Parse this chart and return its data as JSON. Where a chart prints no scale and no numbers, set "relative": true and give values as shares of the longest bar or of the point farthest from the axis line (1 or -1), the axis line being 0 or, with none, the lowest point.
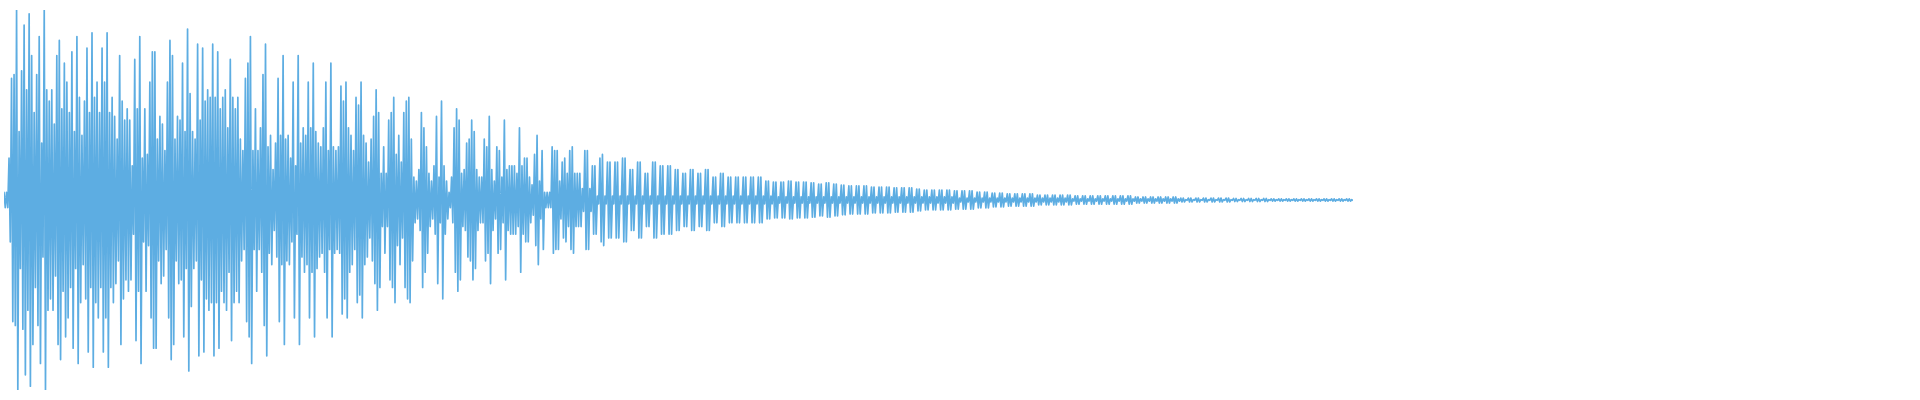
{
  "chart_data": {
    "type": "line",
    "relative": true,
    "color": "#5dade2",
    "marker": "none",
    "line_style": "solid",
    "categories": [
      null,
      null,
      null,
      null,
      null,
      null,
      null,
      null,
      null,
      null,
      null,
      null,
      null,
      null,
      null,
      null,
      null,
      null,
      null,
      null,
      null,
      null,
      null,
      null,
      null,
      null,
      null,
      null,
      null,
      null,
      null,
      null,
      null,
      null,
      null,
      null,
      null,
      null,
      null,
      null,
      null,
      null,
      null,
      null,
      null,
      null,
      null,
      null,
      null,
      null,
      null,
      null,
      null,
      null,
      null,
      null,
      null,
      null,
      null,
      null,
      null,
      null,
      null,
      null,
      null,
      null,
      null,
      null,
      null,
      null,
      null,
      null,
      null,
      null,
      null,
      null,
      null,
      null,
      null,
      null,
      null,
      null,
      null,
      null,
      null,
      null,
      null,
      null,
      null,
      null,
      null,
      null,
      null,
      null,
      null,
      null,
      null,
      null,
      null,
      null,
      null,
      null,
      null,
      null,
      null,
      null,
      null,
      null,
      null,
      null,
      null,
      null,
      null,
      null,
      null,
      null,
      null,
      null,
      null,
      null,
      null,
      null,
      null,
      null,
      null,
      null,
      null,
      null,
      null,
      null,
      null,
      null,
      null,
      null,
      null,
      null,
      null,
      null,
      null,
      null,
      null,
      null,
      null,
      null,
      null,
      null,
      null,
      null,
      null,
      null,
      null,
      null,
      null,
      null,
      null,
      null,
      null,
      null,
      null,
      null,
      null,
      null,
      null,
      null,
      null,
      null,
      null,
      null,
      null,
      null,
      null,
      null,
      null,
      null,
      null,
      null,
      null,
      null,
      null,
      null,
      null,
      null,
      null,
      null,
      null,
      null,
      null,
      null,
      null,
      null,
      null,
      null,
      null,
      null,
      null,
      null,
      null,
      null,
      null,
      null,
      null,
      null,
      null,
      null,
      null,
      null,
      null,
      null,
      null,
      null,
      null,
      null,
      null,
      null,
      null,
      null,
      null,
      null,
      null,
      null,
      null,
      null,
      null,
      null,
      null,
      null,
      null,
      null,
      null,
      null,
      null,
      null,
      null,
      null,
      null,
      null,
      null,
      null,
      null,
      null,
      null,
      null,
      null,
      null,
      null,
      null,
      null,
      null,
      null,
      null,
      null,
      null,
      null,
      null,
      null,
      null,
      null,
      null,
      null,
      null,
      null,
      null,
      null,
      null,
      null,
      null,
      null,
      null,
      null,
      null,
      null,
      null,
      null,
      null,
      null,
      null,
      null,
      null,
      null,
      null,
      null,
      null,
      null,
      null,
      null,
      null,
      null,
      null,
      null,
      null,
      null,
      null,
      null,
      null,
      null,
      null,
      null,
      null,
      null,
      null,
      null,
      null,
      null,
      null,
      null,
      null,
      null,
      null,
      null,
      null,
      null,
      null,
      null,
      null,
      null,
      null,
      null,
      null,
      null,
      null,
      null,
      null,
      null,
      null,
      null,
      null,
      null,
      null,
      null,
      null,
      null,
      null,
      null,
      null,
      null,
      null,
      null,
      null,
      null,
      null,
      null,
      null,
      null,
      null,
      null,
      null,
      null,
      null,
      null,
      null,
      null,
      null,
      null,
      null,
      null,
      null,
      null,
      null,
      null,
      null,
      null,
      null,
      null,
      null,
      null,
      null,
      null,
      null,
      null,
      null,
      null,
      null,
      null,
      null,
      null,
      null,
      null,
      null,
      null,
      null,
      null,
      null,
      null,
      null,
      null,
      null,
      null,
      null,
      null,
      null,
      null,
      null,
      null,
      null,
      null,
      null,
      null,
      null,
      null,
      null,
      null,
      null,
      null,
      null,
      null,
      null,
      null,
      null,
      null,
      null,
      null,
      null,
      null,
      null,
      null,
      null,
      null,
      null,
      null,
      null,
      null,
      null,
      null,
      null,
      null,
      null,
      null,
      null,
      null,
      null,
      null,
      null,
      null,
      null,
      null,
      null,
      null,
      null,
      null,
      null,
      null,
      null,
      null,
      null,
      null,
      null,
      null,
      null,
      null,
      null,
      null,
      null,
      null,
      null,
      null,
      null,
      null,
      null,
      null,
      null,
      null,
      null,
      null,
      null,
      null,
      null,
      null,
      null,
      null,
      null,
      null,
      null,
      null,
      null,
      null,
      null,
      null,
      null,
      null,
      null,
      null,
      null,
      null,
      null,
      null,
      null,
      null,
      null,
      null,
      null,
      null,
      null,
      null,
      null,
      null,
      null,
      null,
      null,
      null,
      null,
      null,
      null,
      null,
      null,
      null,
      null,
      null,
      null,
      null,
      null,
      null,
      null,
      null,
      null,
      null,
      null,
      null,
      null,
      null,
      null,
      null,
      null,
      null,
      null,
      null,
      null,
      null,
      null,
      null,
      null,
      null,
      null,
      null,
      null,
      null,
      null,
      null,
      null,
      null,
      null,
      null,
      null,
      null,
      null,
      null,
      null,
      null,
      null,
      null,
      null,
      null,
      null,
      null,
      null,
      null,
      null,
      null,
      null,
      null,
      null,
      null,
      null,
      null,
      null,
      null,
      null,
      null,
      null,
      null,
      null,
      null,
      null,
      null,
      null,
      null,
      null,
      null,
      null,
      null,
      null,
      null,
      null,
      null,
      null,
      null,
      null,
      null,
      null,
      null,
      null,
      null,
      null,
      null,
      null,
      null,
      null,
      null,
      null,
      null,
      null,
      null,
      null,
      null,
      null,
      null,
      null,
      null,
      null,
      null,
      null,
      null,
      null,
      null,
      null,
      null,
      null,
      null,
      null,
      null,
      null,
      null,
      null,
      null,
      null,
      null,
      null,
      null,
      null,
      null,
      null,
      null,
      null,
      null,
      null,
      null,
      null,
      null,
      null,
      null,
      null,
      null,
      null,
      null,
      null,
      null,
      null,
      null,
      null,
      null,
      null,
      null,
      null,
      null,
      null,
      null,
      null,
      null,
      null,
      null,
      null,
      null,
      null,
      null,
      null,
      null,
      null,
      null,
      null,
      null,
      null,
      null,
      null,
      null,
      null,
      null,
      null,
      null,
      null,
      null,
      null,
      null,
      null,
      null,
      null,
      null,
      null,
      null,
      null,
      null,
      null,
      null,
      null,
      null,
      null,
      null,
      null,
      null,
      null,
      null,
      null,
      null,
      null,
      null,
      null,
      null,
      null,
      null,
      null,
      null,
      null,
      null,
      null,
      null,
      null,
      null,
      null,
      null,
      null,
      null,
      null,
      null,
      null,
      null,
      null,
      null,
      null,
      null,
      null,
      null,
      null,
      null,
      null,
      null,
      null,
      null,
      null,
      null,
      null,
      null,
      null,
      null,
      null,
      null,
      null,
      null,
      null,
      null,
      null,
      null,
      null,
      null,
      null,
      null,
      null,
      null,
      null,
      null,
      null,
      null,
      null,
      null,
      null,
      null,
      null,
      null,
      null,
      null,
      null,
      null,
      null,
      null,
      null,
      null,
      null,
      null,
      null,
      null,
      null,
      null,
      null,
      null,
      null,
      null,
      null,
      null,
      null,
      null,
      null,
      null,
      null,
      null,
      null,
      null,
      null,
      null,
      null,
      null,
      null,
      null,
      null,
      null,
      null,
      null,
      null,
      null,
      null,
      null,
      null,
      null,
      null,
      null,
      null,
      null,
      null,
      null,
      null,
      null,
      null,
      null,
      null,
      null,
      null,
      null,
      null,
      null,
      null,
      null,
      null,
      null,
      null,
      null,
      null,
      null,
      null,
      null,
      null,
      null,
      null,
      null,
      null,
      null,
      null,
      null,
      null,
      null,
      null,
      null,
      null,
      null,
      null,
      null,
      null,
      null,
      null,
      null,
      null,
      null,
      null,
      null,
      null,
      null,
      null,
      null,
      null,
      null,
      null,
      null,
      null,
      null,
      null,
      null,
      null,
      null,
      null,
      null,
      null,
      null,
      null,
      null,
      null,
      null,
      null,
      null,
      null,
      null,
      null,
      null,
      null,
      null,
      null,
      null,
      null,
      null,
      null,
      null,
      null,
      null,
      null,
      null,
      null,
      null,
      null,
      null,
      null,
      null,
      null,
      null,
      null,
      null,
      null,
      null,
      null,
      null,
      null,
      null,
      null,
      null,
      null,
      null,
      null,
      null,
      null,
      null,
      null,
      null,
      null,
      null,
      null,
      null,
      null,
      null,
      null,
      null,
      null,
      null,
      null,
      null,
      null,
      null,
      null,
      null,
      null,
      null,
      null,
      null,
      null,
      null,
      null,
      null,
      null,
      null,
      null,
      null,
      null,
      null,
      null,
      null,
      null,
      null,
      null,
      null,
      null,
      null,
      null,
      null,
      null,
      null,
      null,
      null,
      null,
      null,
      null,
      null,
      null,
      null,
      null,
      null,
      null,
      null,
      null,
      null,
      null,
      null,
      null,
      null,
      null,
      null,
      null,
      null,
      null,
      null,
      null,
      null,
      null,
      null,
      null,
      null,
      null,
      null,
      null,
      null,
      null,
      null,
      null,
      null,
      null,
      null,
      null,
      null,
      null,
      null,
      null,
      null,
      null,
      null,
      null,
      null,
      null,
      null,
      null,
      null,
      null,
      null,
      null,
      null,
      null,
      null,
      null,
      null,
      null,
      null,
      null,
      null,
      null,
      null,
      null,
      null,
      null,
      null,
      null,
      null,
      null,
      null,
      null,
      null,
      null,
      null,
      null,
      null,
      null,
      null,
      null,
      null,
      null,
      null,
      null,
      null,
      null,
      null,
      null,
      null,
      null,
      null,
      null,
      null,
      null,
      null,
      null,
      null,
      null,
      null,
      null,
      null,
      null
    ],
    "values": [
      0.52,
      0.48,
      0.52,
      0.48,
      0.61,
      0.39,
      0.82,
      0.18,
      0.83,
      0.17,
      1,
      0,
      0.68,
      0.32,
      0.84,
      0.16,
      0.96,
      0.04,
      0.79,
      0.21,
      0.99,
      0.01,
      0.88,
      0.12,
      0.73,
      0.27,
      0.83,
      0.17,
      0.93,
      0.07,
      0.65,
      0.35,
      1,
      0,
      0.79,
      0.21,
      0.76,
      0.24,
      0.79,
      0.21,
      0.7,
      0.3,
      0.88,
      0.12,
      0.92,
      0.08,
      0.74,
      0.26,
      0.86,
      0.14,
      0.81,
      0.19,
      0.73,
      0.27,
      0.89,
      0.11,
      0.68,
      0.32,
      0.93,
      0.07,
      0.77,
      0.23,
      0.67,
      0.33,
      0.76,
      0.24,
      0.9,
      0.1,
      0.73,
      0.27,
      0.94,
      0.06,
      0.77,
      0.23,
      0.81,
      0.19,
      0.73,
      0.27,
      0.9,
      0.1,
      0.81,
      0.19,
      0.94,
      0.06,
      0.73,
      0.27,
      0.77,
      0.23,
      0.72,
      0.28,
      0.66,
      0.34,
      0.88,
      0.12,
      0.76,
      0.24,
      0.71,
      0.29,
      0.74,
      0.26,
      0.71,
      0.29,
      0.59,
      0.41,
      0.87,
      0.13,
      0.74,
      0.26,
      0.93,
      0.07,
      0.61,
      0.39,
      0.74,
      0.26,
      0.62,
      0.38,
      0.81,
      0.19,
      0.89,
      0.11,
      0.89,
      0.11,
      0.66,
      0.34,
      0.72,
      0.28,
      0.7,
      0.3,
      0.63,
      0.37,
      0.81,
      0.19,
      0.92,
      0.08,
      0.88,
      0.12,
      0.66,
      0.34,
      0.72,
      0.28,
      0.71,
      0.29,
      0.86,
      0.14,
      0.68,
      0.32,
      0.95,
      0.05,
      0.78,
      0.22,
      0.68,
      0.32,
      0.66,
      0.34,
      0.91,
      0.09,
      0.71,
      0.29,
      0.9,
      0.1,
      0.76,
      0.24,
      0.79,
      0.21,
      0.77,
      0.23,
      0.91,
      0.09,
      0.77,
      0.23,
      0.89,
      0.11,
      0.74,
      0.26,
      0.77,
      0.23,
      0.79,
      0.21,
      0.69,
      0.31,
      0.87,
      0.13,
      0.77,
      0.23,
      0.74,
      0.26,
      0.77,
      0.23,
      0.66,
      0.34,
      0.63,
      0.37,
      0.82,
      0.18,
      0.86,
      0.14,
      0.93,
      0.07,
      0.63,
      0.37,
      0.74,
      0.26,
      0.63,
      0.37,
      0.69,
      0.31,
      0.83,
      0.17,
      0.91,
      0.09,
      0.64,
      0.36,
      0.67,
      0.33,
      0.58,
      0.42,
      0.65,
      0.35,
      0.82,
      0.18,
      0.67,
      0.33,
      0.88,
      0.12,
      0.66,
      0.34,
      0.67,
      0.33,
      0.61,
      0.39,
      0.81,
      0.19,
      0.59,
      0.41,
      0.88,
      0.12,
      0.65,
      0.35,
      0.69,
      0.31,
      0.67,
      0.33,
      0.81,
      0.19,
      0.69,
      0.31,
      0.86,
      0.14,
      0.68,
      0.32,
      0.65,
      0.35,
      0.64,
      0.36,
      0.69,
      0.31,
      0.81,
      0.19,
      0.63,
      0.37,
      0.86,
      0.14,
      0.64,
      0.36,
      0.63,
      0.37,
      0.64,
      0.36,
      0.8,
      0.2,
      0.76,
      0.24,
      0.81,
      0.19,
      0.69,
      0.31,
      0.67,
      0.33,
      0.63,
      0.37,
      0.77,
      0.23,
      0.75,
      0.25,
      0.81,
      0.19,
      0.67,
      0.33,
      0.65,
      0.35,
      0.6,
      0.4,
      0.66,
      0.34,
      0.72,
      0.28,
      0.79,
      0.21,
      0.73,
      0.27,
      0.57,
      0.43,
      0.64,
      0.36,
      0.57,
      0.43,
      0.71,
      0.29,
      0.73,
      0.27,
      0.77,
      0.23,
      0.62,
      0.38,
      0.67,
      0.33,
      0.6,
      0.4,
      0.73,
      0.27,
      0.76,
      0.24,
      0.77,
      0.23,
      0.66,
      0.34,
      0.56,
      0.44,
      0.55,
      0.45,
      0.58,
      0.42,
      0.73,
      0.27,
      0.69,
      0.31,
      0.64,
      0.36,
      0.57,
      0.43,
      0.55,
      0.45,
      0.59,
      0.41,
      0.72,
      0.28,
      0.56,
      0.44,
      0.76,
      0.24,
      0.59,
      0.41,
      0.55,
      0.45,
      0.52,
      0.48,
      0.56,
      0.44,
      0.69,
      0.31,
      0.74,
      0.26,
      0.71,
      0.29,
      0.57,
      0.43,
      0.58,
      0.42,
      0.65,
      0.35,
      0.66,
      0.34,
      0.71,
      0.29,
      0.68,
      0.32,
      0.58,
      0.42,
      0.56,
      0.44,
      0.56,
      0.44,
      0.66,
      0.34,
      0.64,
      0.36,
      0.72,
      0.28,
      0.58,
      0.42,
      0.55,
      0.45,
      0.64,
      0.36,
      0.63,
      0.37,
      0.56,
      0.44,
      0.71,
      0.29,
      0.58,
      0.42,
      0.59,
      0.41,
      0.59,
      0.41,
      0.59,
      0.41,
      0.57,
      0.43,
      0.69,
      0.31,
      0.59,
      0.41,
      0.61,
      0.39,
      0.61,
      0.39,
      0.56,
      0.44,
      0.54,
      0.46,
      0.62,
      0.38,
      0.67,
      0.33,
      0.55,
      0.45,
      0.63,
      0.37,
      0.52,
      0.48,
      0.52,
      0.48,
      0.52,
      0.48,
      0.64,
      0.36,
      0.63,
      0.37,
      0.63,
      0.37,
      0.55,
      0.45,
      0.6,
      0.4,
      0.61,
      0.39,
      0.57,
      0.43,
      0.63,
      0.37,
      0.64,
      0.36,
      0.57,
      0.43,
      0.57,
      0.43,
      0.57,
      0.43,
      0.53,
      0.47,
      0.63,
      0.37,
      0.63,
      0.37,
      0.53,
      0.47,
      0.59,
      0.41,
      0.59,
      0.41,
      0.51,
      0.49,
      0.61,
      0.39,
      0.62,
      0.38,
      0.51,
      0.49,
      0.6,
      0.4,
      0.6,
      0.4,
      0.51,
      0.49,
      0.6,
      0.4,
      0.6,
      0.4,
      0.51,
      0.49,
      0.61,
      0.39,
      0.61,
      0.39,
      0.51,
      0.49,
      0.58,
      0.42,
      0.58,
      0.42,
      0.51,
      0.49,
      0.6,
      0.4,
      0.6,
      0.4,
      0.51,
      0.49,
      0.57,
      0.43,
      0.57,
      0.43,
      0.51,
      0.49,
      0.6,
      0.4,
      0.6,
      0.4,
      0.51,
      0.49,
      0.59,
      0.41,
      0.59,
      0.41,
      0.51,
      0.49,
      0.59,
      0.41,
      0.59,
      0.41,
      0.51,
      0.49,
      0.58,
      0.42,
      0.58,
      0.42,
      0.51,
      0.49,
      0.57,
      0.43,
      0.57,
      0.43,
      0.51,
      0.49,
      0.58,
      0.42,
      0.58,
      0.42,
      0.51,
      0.49,
      0.57,
      0.43,
      0.57,
      0.43,
      0.51,
      0.49,
      0.58,
      0.42,
      0.58,
      0.42,
      0.51,
      0.49,
      0.56,
      0.44,
      0.56,
      0.44,
      0.51,
      0.49,
      0.57,
      0.43,
      0.57,
      0.43,
      0.51,
      0.49,
      0.56,
      0.44,
      0.56,
      0.44,
      0.51,
      0.49,
      0.56,
      0.44,
      0.56,
      0.44,
      0.51,
      0.49,
      0.56,
      0.44,
      0.56,
      0.44,
      0.51,
      0.49,
      0.56,
      0.44,
      0.56,
      0.44,
      0.51,
      0.49,
      0.56,
      0.44,
      0.56,
      0.44,
      0.51,
      0.49,
      0.55,
      0.45,
      0.55,
      0.45,
      0.51,
      0.49,
      0.547,
      0.453,
      0.547,
      0.453,
      0.508,
      0.492,
      0.547,
      0.453,
      0.547,
      0.453,
      0.508,
      0.492,
      0.55,
      0.45,
      0.55,
      0.45,
      0.508,
      0.492,
      0.547,
      0.453,
      0.547,
      0.453,
      0.508,
      0.492,
      0.547,
      0.453,
      0.547,
      0.453,
      0.508,
      0.492,
      0.545,
      0.455,
      0.545,
      0.455,
      0.508,
      0.492,
      0.542,
      0.458,
      0.542,
      0.458,
      0.508,
      0.492,
      0.545,
      0.455,
      0.545,
      0.455,
      0.508,
      0.492,
      0.542,
      0.458,
      0.542,
      0.458,
      0.508,
      0.492,
      0.539,
      0.461,
      0.539,
      0.461,
      0.508,
      0.492,
      0.537,
      0.463,
      0.537,
      0.463,
      0.508,
      0.492,
      0.537,
      0.463,
      0.537,
      0.463,
      0.508,
      0.492,
      0.537,
      0.463,
      0.537,
      0.463,
      0.508,
      0.492,
      0.534,
      0.466,
      0.534,
      0.466,
      0.508,
      0.492,
      0.534,
      0.466,
      0.534,
      0.466,
      0.508,
      0.492,
      0.534,
      0.466,
      0.534,
      0.466,
      0.508,
      0.492,
      0.532,
      0.468,
      0.532,
      0.468,
      0.508,
      0.492,
      0.532,
      0.468,
      0.532,
      0.468,
      0.508,
      0.492,
      0.532,
      0.468,
      0.532,
      0.468,
      0.508,
      0.492,
      0.529,
      0.471,
      0.529,
      0.471,
      0.508,
      0.492,
      0.526,
      0.474,
      0.526,
      0.474,
      0.508,
      0.492,
      0.526,
      0.474,
      0.526,
      0.474,
      0.508,
      0.492,
      0.526,
      0.474,
      0.526,
      0.474,
      0.508,
      0.492,
      0.526,
      0.474,
      0.526,
      0.474,
      0.508,
      0.492,
      0.524,
      0.476,
      0.524,
      0.476,
      0.505,
      0.495,
      0.524,
      0.476,
      0.524,
      0.476,
      0.505,
      0.495,
      0.524,
      0.476,
      0.524,
      0.476,
      0.505,
      0.495,
      0.521,
      0.479,
      0.521,
      0.479,
      0.505,
      0.495,
      0.521,
      0.479,
      0.521,
      0.479,
      0.505,
      0.495,
      0.518,
      0.482,
      0.518,
      0.482,
      0.505,
      0.495,
      0.518,
      0.482,
      0.518,
      0.482,
      0.505,
      0.495,
      0.516,
      0.484,
      0.516,
      0.484,
      0.505,
      0.495,
      0.516,
      0.484,
      0.516,
      0.484,
      0.505,
      0.495,
      0.516,
      0.484,
      0.516,
      0.484,
      0.505,
      0.495,
      0.516,
      0.484,
      0.516,
      0.484,
      0.505,
      0.495,
      0.513,
      0.487,
      0.513,
      0.487,
      0.505,
      0.495,
      0.513,
      0.487,
      0.513,
      0.487,
      0.505,
      0.495,
      0.513,
      0.487,
      0.513,
      0.487,
      0.505,
      0.495,
      0.513,
      0.487,
      0.513,
      0.487,
      0.505,
      0.495,
      0.513,
      0.487,
      0.513,
      0.487,
      0.503,
      0.497,
      0.511,
      0.489,
      0.511,
      0.489,
      0.503,
      0.497,
      0.511,
      0.489,
      0.511,
      0.489,
      0.503,
      0.497,
      0.511,
      0.489,
      0.511,
      0.489,
      0.503,
      0.497,
      0.511,
      0.489,
      0.511,
      0.489,
      0.503,
      0.497,
      0.511,
      0.489,
      0.511,
      0.489,
      0.503,
      0.497,
      0.511,
      0.489,
      0.511,
      0.489,
      0.503,
      0.497,
      0.511,
      0.489,
      0.511,
      0.489,
      0.503,
      0.497,
      0.511,
      0.489,
      0.511,
      0.489,
      0.503,
      0.497,
      0.508,
      0.492,
      0.508,
      0.492,
      0.503,
      0.497,
      0.508,
      0.492,
      0.508,
      0.492,
      0.503,
      0.497,
      0.508,
      0.492,
      0.508,
      0.492,
      0.503,
      0.497,
      0.508,
      0.492,
      0.508,
      0.492,
      0.503,
      0.497,
      0.508,
      0.492,
      0.508,
      0.492,
      0.503,
      0.497,
      0.508,
      0.492,
      0.508,
      0.492,
      0.503,
      0.497,
      0.505,
      0.495,
      0.505,
      0.495,
      0.501,
      0.499,
      0.505,
      0.495,
      0.505,
      0.495,
      0.501,
      0.499,
      0.505,
      0.495,
      0.505,
      0.495,
      0.501,
      0.499,
      0.505,
      0.495,
      0.505,
      0.495,
      0.501,
      0.499,
      0.505,
      0.495,
      0.505,
      0.495,
      0.501,
      0.499,
      0.505,
      0.495,
      0.505,
      0.495,
      0.501,
      0.499,
      0.505,
      0.495,
      0.505,
      0.495,
      0.501,
      0.499,
      0.504,
      0.496,
      0.504,
      0.496,
      0.501,
      0.499,
      0.504,
      0.496,
      0.504,
      0.496,
      0.501,
      0.499,
      0.504,
      0.496,
      0.504,
      0.496,
      0.501,
      0.499,
      0.504,
      0.496,
      0.504,
      0.496,
      0.501,
      0.499,
      0.504,
      0.496,
      0.504,
      0.496,
      0.501,
      0.499,
      0.503,
      0.497,
      0.503,
      0.497,
      0.501,
      0.499,
      0.503,
      0.497,
      0.503,
      0.497,
      0.501,
      0.499,
      0.503,
      0.497,
      0.503,
      0.497,
      0.501,
      0.499,
      0.503,
      0.497,
      0.503,
      0.497,
      0.501,
      0.499,
      0.503,
      0.497,
      0.503,
      0.497,
      0.501,
      0.499,
      0.503,
      0.497,
      0.503,
      0.497,
      0.501,
      0.499,
      0.503,
      0.497,
      0.503,
      0.497,
      0.501,
      0.499,
      0.503,
      0.497,
      0.503,
      0.497,
      0.501,
      0.499,
      0.503,
      0.497,
      0.503,
      0.497,
      0.501,
      0.499,
      0.503,
      0.497,
      0.503,
      0.497,
      0.501,
      0.499,
      0.503,
      0.497,
      0.503,
      0.497,
      0.501,
      0.499
    ]
  }
}
